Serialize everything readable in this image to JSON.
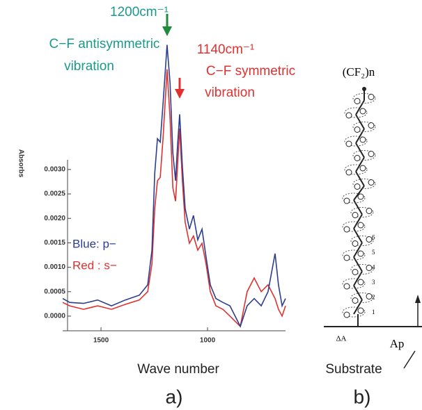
{
  "chart_data": {
    "type": "line",
    "annotations": {
      "peak1_label": "1200cm⁻¹",
      "peak1_desc_1": "C−F antisymmetric",
      "peak1_desc_2": "vibration",
      "peak2_label": "1140cm⁻¹",
      "peak2_desc_1": "C−F symmetric",
      "peak2_desc_2": "vibration"
    },
    "y_label": "Absorbs",
    "x_label": "Wave number",
    "panel_label": "a)",
    "x": [
      1680,
      1647,
      1582,
      1516,
      1451,
      1386,
      1320,
      1281,
      1261,
      1248,
      1235,
      1222,
      1209,
      1190,
      1176,
      1163,
      1150,
      1141,
      1131,
      1118,
      1105,
      1085,
      1066,
      1046,
      1026,
      1007,
      987,
      961,
      928,
      895,
      846,
      814,
      781,
      748,
      716,
      683,
      667,
      650,
      634
    ],
    "series": [
      {
        "name": "Blue: p−",
        "color": "#2b3d90",
        "values": [
          0.00036,
          0.00028,
          0.00026,
          0.00033,
          0.00021,
          0.00033,
          0.00043,
          0.00064,
          0.00135,
          0.00292,
          0.00363,
          0.00356,
          0.00434,
          0.00555,
          0.00477,
          0.00334,
          0.00277,
          0.00348,
          0.00413,
          0.00306,
          0.0022,
          0.00178,
          0.00206,
          0.00156,
          0.00178,
          0.00121,
          0.00064,
          0.00036,
          0.00028,
          0.00021,
          -0.00021,
          0.00021,
          0.00036,
          0.00021,
          0.0005,
          0.00128,
          0.00064,
          0.00021,
          0.00036
        ]
      },
      {
        "name": "Red : s−",
        "color": "#e03030",
        "values": [
          0.00028,
          0.00021,
          0.00014,
          0.00021,
          0.00014,
          0.00024,
          0.00033,
          0.0005,
          0.00107,
          0.0022,
          0.00277,
          0.00284,
          0.00363,
          0.00505,
          0.00405,
          0.00263,
          0.00235,
          0.00306,
          0.00384,
          0.00277,
          0.00192,
          0.00149,
          0.00164,
          0.00135,
          0.00149,
          0.00107,
          0.0005,
          0.00021,
          0.00014,
          0,
          -0.00021,
          0.0005,
          0.00078,
          0.0005,
          0.00064,
          0.00036,
          0.00014,
          0,
          0.00021
        ]
      }
    ],
    "xlim": [
      1680,
      634
    ],
    "xticks": [
      1500,
      1000
    ],
    "ylim": [
      -0.0003,
      0.0058
    ],
    "yticks": [
      {
        "value": 0,
        "label": "0.0000"
      },
      0.0005,
      {
        "value": 0.001,
        "label": "0.0010"
      },
      0.0015,
      {
        "value": 0.002,
        "label": "0.0020"
      },
      0.0025,
      {
        "value": 0.003,
        "label": "0.0030"
      }
    ],
    "grid": false
  },
  "diagram": {
    "title": "(CF₂)n",
    "substrate": "Substrate",
    "axis_label": "Ap",
    "small_label": "ΔA",
    "numbers": [
      "1",
      "2",
      "3",
      "4",
      "5",
      "6"
    ],
    "panel_label": "b)"
  }
}
